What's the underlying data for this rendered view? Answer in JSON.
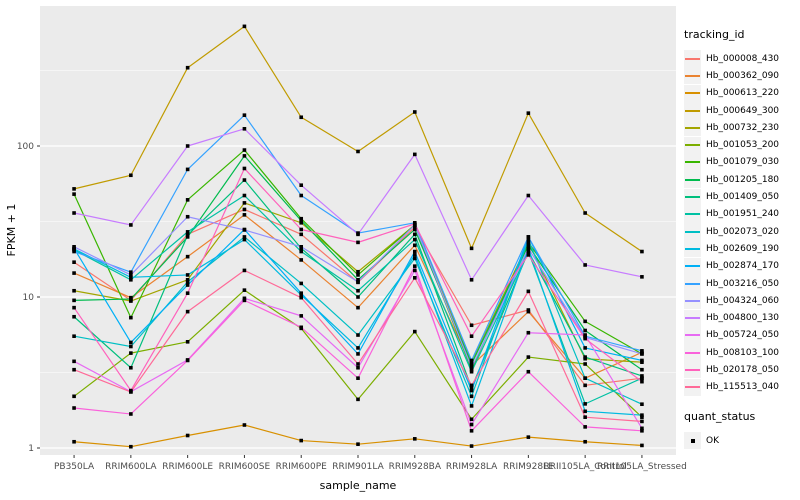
{
  "chart_data": {
    "type": "line",
    "xlabel": "sample_name",
    "ylabel": "FPKM + 1",
    "y_scale": "log10",
    "ylim": [
      1,
      845
    ],
    "y_ticks": [
      1,
      10,
      100
    ],
    "y_tick_labels": [
      "1",
      "10",
      "100"
    ],
    "y_minor_ticks": [
      3.162,
      31.623,
      316.228
    ],
    "grid": true,
    "x_categories": [
      "PB350LA",
      "RRIM600LA",
      "RRIM600LE",
      "RRIM600SE",
      "RRIM600PE",
      "RRIM901LA",
      "RRIM928BA",
      "RRIM928LA",
      "RRIM928LE",
      "RRII105LA_Control",
      "RRII105LA_Stressed"
    ],
    "legend": {
      "title": "tracking_id",
      "position": "right"
    },
    "quant_legend": {
      "title": "quant_status",
      "items": [
        "OK"
      ]
    },
    "marker": {
      "shape": "square",
      "color": "#000000"
    },
    "series": [
      {
        "name": "Hb_000008_430",
        "color": "#F8766D",
        "values": [
          17,
          9.5,
          26,
          38,
          26,
          12.5,
          29,
          6.5,
          8.2,
          2.6,
          2.9
        ]
      },
      {
        "name": "Hb_000362_090",
        "color": "#EA8331",
        "values": [
          14.4,
          9.9,
          18.5,
          35,
          17.6,
          8.5,
          22,
          3.5,
          8.0,
          2.9,
          4.3
        ]
      },
      {
        "name": "Hb_000613_220",
        "color": "#D89000",
        "values": [
          1.1,
          1.02,
          1.21,
          1.42,
          1.12,
          1.06,
          1.15,
          1.03,
          1.18,
          1.1,
          1.04
        ]
      },
      {
        "name": "Hb_000649_300",
        "color": "#C09B00",
        "values": [
          52,
          64,
          330,
          620,
          155,
          92,
          168,
          21,
          165,
          36,
          20
        ]
      },
      {
        "name": "Hb_000732_230",
        "color": "#A3A500",
        "values": [
          11,
          9.4,
          13,
          42,
          31,
          14.7,
          30,
          3.7,
          23,
          3.9,
          3.7
        ]
      },
      {
        "name": "Hb_001053_200",
        "color": "#7CAE00",
        "values": [
          2.2,
          4.25,
          5.05,
          11.1,
          6.2,
          2.1,
          5.9,
          1.55,
          4.0,
          3.6,
          1.6
        ]
      },
      {
        "name": "Hb_001079_030",
        "color": "#39B600",
        "values": [
          48,
          7.3,
          44,
          94,
          33,
          14,
          30,
          3.3,
          23,
          6.9,
          4.2
        ]
      },
      {
        "name": "Hb_001205_180",
        "color": "#00BB4E",
        "values": [
          9.5,
          9.7,
          25,
          86,
          32,
          13,
          28,
          3.6,
          22,
          6.0,
          3.3
        ]
      },
      {
        "name": "Hb_001409_050",
        "color": "#00BF7D",
        "values": [
          7.4,
          3.4,
          25.7,
          59.5,
          21,
          10,
          26,
          2.5,
          20,
          4.0,
          3.0
        ]
      },
      {
        "name": "Hb_001951_240",
        "color": "#00C1A3",
        "values": [
          20.5,
          13,
          27,
          47,
          20,
          11,
          24,
          3.2,
          20,
          1.96,
          2.9
        ]
      },
      {
        "name": "Hb_002073_020",
        "color": "#00BFC4",
        "values": [
          5.5,
          4.7,
          12.6,
          25,
          12.3,
          5.6,
          18,
          2.2,
          24,
          2.9,
          1.95
        ]
      },
      {
        "name": "Hb_002609_190",
        "color": "#00BAE0",
        "values": [
          20.8,
          13.5,
          14,
          24,
          10.3,
          4.6,
          19,
          1.9,
          21,
          1.75,
          1.65
        ]
      },
      {
        "name": "Hb_002874_170",
        "color": "#00B0F6",
        "values": [
          21,
          5.0,
          12,
          28,
          10.6,
          4.2,
          20,
          2.4,
          25,
          4.6,
          3.8
        ]
      },
      {
        "name": "Hb_003216_050",
        "color": "#35A2FF",
        "values": [
          20,
          14.6,
          70,
          160,
          47,
          26.5,
          31,
          3.8,
          25,
          5.5,
          4.4
        ]
      },
      {
        "name": "Hb_004324_060",
        "color": "#9590FF",
        "values": [
          21.5,
          14,
          34,
          27.8,
          21.5,
          12.6,
          30,
          3.4,
          21,
          5.4,
          4.2
        ]
      },
      {
        "name": "Hb_004800_130",
        "color": "#C77CFF",
        "values": [
          36,
          30,
          100,
          130,
          55,
          26,
          88,
          13,
          47,
          16.3,
          13.6
        ]
      },
      {
        "name": "Hb_005724_050",
        "color": "#E76BF3",
        "values": [
          3.75,
          2.36,
          3.83,
          9.8,
          7.5,
          3.4,
          15,
          1.43,
          5.8,
          5.6,
          1.35
        ]
      },
      {
        "name": "Hb_008103_100",
        "color": "#FA62DB",
        "values": [
          1.84,
          1.68,
          3.8,
          9.5,
          6.3,
          2.9,
          16,
          1.3,
          3.2,
          1.38,
          1.3
        ]
      },
      {
        "name": "Hb_020178_050",
        "color": "#FF62BC",
        "values": [
          8.5,
          2.4,
          10.6,
          71,
          28,
          23,
          30.5,
          5.5,
          19,
          5.3,
          2.75
        ]
      },
      {
        "name": "Hb_115513_040",
        "color": "#FF6A98",
        "values": [
          3.3,
          2.35,
          8.0,
          15,
          9.9,
          3.6,
          13.4,
          2.6,
          10.9,
          1.6,
          1.5
        ]
      }
    ]
  },
  "style": {
    "panel_bg": "#EBEBEB",
    "grid_color": "#FFFFFF",
    "tick_label_color": "#4D4D4D",
    "tick_mark_color": "#333333",
    "axis_title_color": "#000000",
    "legend_key_bg": "#F2F2F2",
    "point_color": "#000000"
  }
}
